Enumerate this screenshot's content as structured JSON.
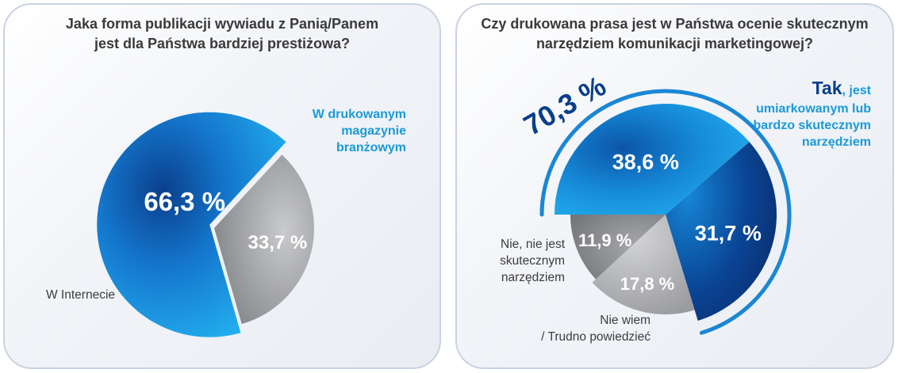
{
  "chart_data": [
    {
      "type": "pie",
      "title_lines": [
        "Jaka forma publikacji wywiadu z Panią/Panem",
        "jest dla Państwa bardziej prestiżowa?"
      ],
      "slices": [
        {
          "label_lines": [
            "W drukowanym",
            "magazynie",
            "branżowym"
          ],
          "value": 66.3,
          "value_label": "66,3 %",
          "color": "#1b9be0"
        },
        {
          "label_lines": [
            "W Internecie"
          ],
          "value": 33.7,
          "value_label": "33,7 %",
          "color": "#8e8f93"
        }
      ]
    },
    {
      "type": "pie",
      "title_lines": [
        "Czy drukowana prasa jest w Państwa ocenie skutecznym",
        "narzędziem komunikacji marketingowej?"
      ],
      "slices": [
        {
          "label_lines": [],
          "value": 38.6,
          "value_label": "38,6 %",
          "color": "#1b9be0"
        },
        {
          "label_lines": [],
          "value": 31.7,
          "value_label": "31,7 %",
          "color": "#0a3f8a"
        },
        {
          "label_lines": [
            "Nie wiem",
            "/ Trudno powiedzieć"
          ],
          "value": 17.8,
          "value_label": "17,8 %",
          "color": "#b9babd"
        },
        {
          "label_lines": [
            "Nie, nie jest",
            "skutecznym",
            "narzędziem"
          ],
          "value": 11.9,
          "value_label": "11,9 %",
          "color": "#7d7e82"
        }
      ],
      "total_yes": {
        "value": 70.3,
        "value_label": "70,3 %",
        "label_head": "Tak",
        "label_lines": [
          ", jest",
          "umiarkowanym lub",
          "bardzo skutecznym",
          "narzędziem"
        ]
      }
    }
  ]
}
